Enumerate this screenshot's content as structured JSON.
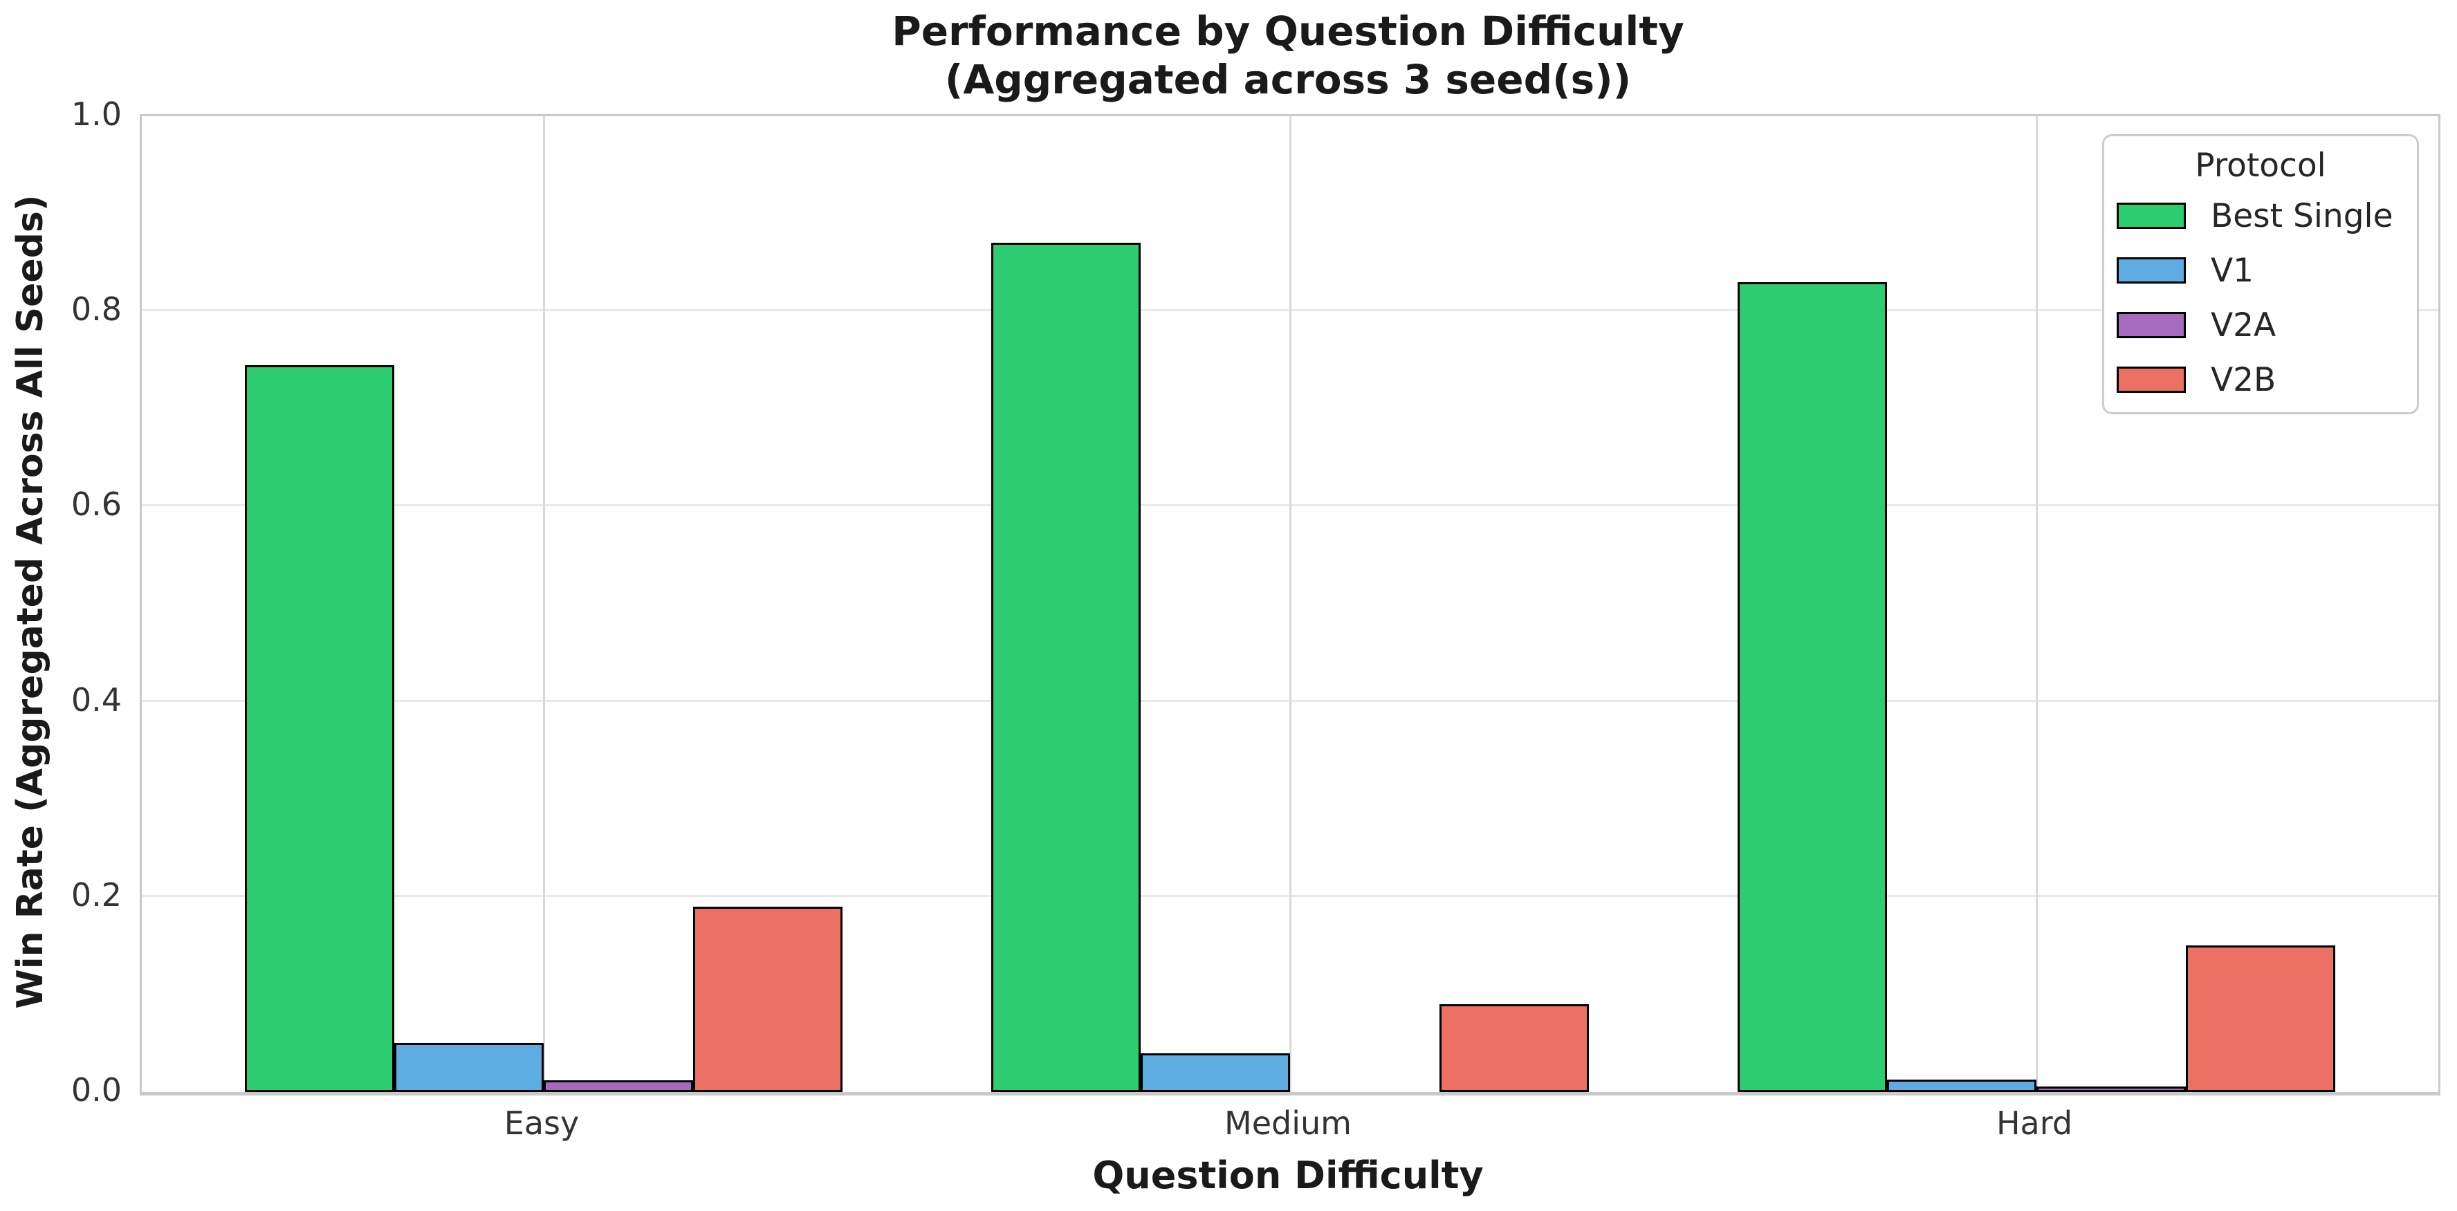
{
  "title": {
    "line1": "Performance by Question Difficulty",
    "line2": "(Aggregated across 3 seed(s))"
  },
  "axes": {
    "x_label": "Question Difficulty",
    "y_label": "Win Rate (Aggregated Across All Seeds)",
    "x_ticks": [
      "Easy",
      "Medium",
      "Hard"
    ],
    "y_ticks": [
      "0.0",
      "0.2",
      "0.4",
      "0.6",
      "0.8",
      "1.0"
    ]
  },
  "legend": {
    "title": "Protocol",
    "entries": [
      {
        "label": "Best Single",
        "color": "#2ecc71"
      },
      {
        "label": "V1",
        "color": "#5dade2"
      },
      {
        "label": "V2A",
        "color": "#a569bd"
      },
      {
        "label": "V2B",
        "color": "#ec7063"
      }
    ]
  },
  "colors": {
    "bar_edge": "#000000",
    "grid_horizontal": "#e9e9e9",
    "grid_vertical": "#d9d9d9",
    "spine": "#c9c9c9"
  },
  "chart_data": {
    "type": "bar",
    "title": "Performance by Question Difficulty\n(Aggregated across 3 seed(s))",
    "xlabel": "Question Difficulty",
    "ylabel": "Win Rate (Aggregated Across All Seeds)",
    "categories": [
      "Easy",
      "Medium",
      "Hard"
    ],
    "series": [
      {
        "name": "Best Single",
        "color": "#2ecc71",
        "values": [
          0.745,
          0.87,
          0.83
        ]
      },
      {
        "name": "V1",
        "color": "#5dade2",
        "values": [
          0.05,
          0.04,
          0.013
        ]
      },
      {
        "name": "V2A",
        "color": "#a569bd",
        "values": [
          0.012,
          0.0,
          0.006
        ]
      },
      {
        "name": "V2B",
        "color": "#ec7063",
        "values": [
          0.19,
          0.09,
          0.15
        ]
      }
    ],
    "ylim": [
      0.0,
      1.0
    ],
    "y_tick_step": 0.2,
    "grid": true,
    "legend_title": "Protocol",
    "legend_position": "upper right"
  }
}
